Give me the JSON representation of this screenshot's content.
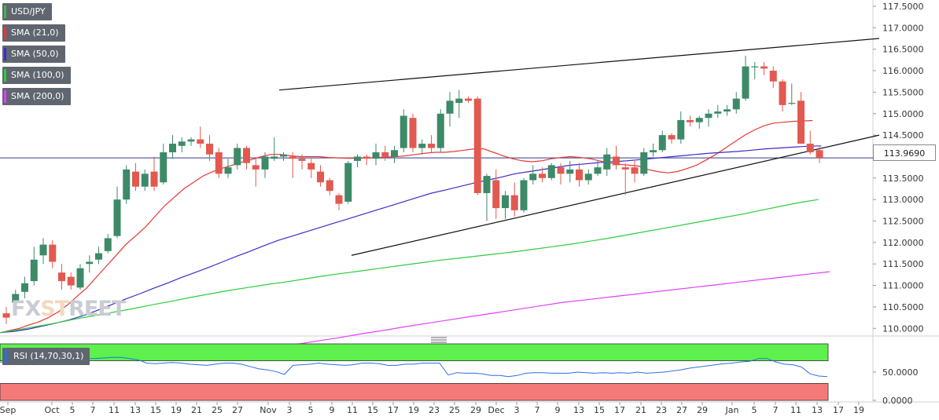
{
  "legends": [
    {
      "label": "USD/JPY",
      "color": "#4caf50"
    },
    {
      "label": "SMA (21,0)",
      "color": "#e53935"
    },
    {
      "label": "SMA (50,0)",
      "color": "#3f2bc7"
    },
    {
      "label": "SMA (100,0)",
      "color": "#2ecc40"
    },
    {
      "label": "SMA (200,0)",
      "color": "#e040fb"
    }
  ],
  "rsi": {
    "label": "RSI (14,70,30,1)",
    "color": "#2b6fe0",
    "overbought_color": "#5ef04c",
    "oversold_color": "#f47a7a",
    "values": [
      68,
      66,
      64,
      63,
      64,
      66,
      68,
      70,
      74,
      75,
      74,
      74,
      75,
      76,
      76,
      74,
      72,
      66,
      65,
      66,
      67,
      66,
      64,
      63,
      62,
      64,
      66,
      66,
      64,
      60,
      56,
      54,
      51,
      46,
      62,
      63,
      64,
      66,
      64,
      63,
      62,
      63,
      66,
      66,
      65,
      62,
      62,
      64,
      64,
      66,
      66,
      66,
      45,
      49,
      48,
      48,
      47,
      44,
      44,
      42,
      44,
      48,
      49,
      49,
      48,
      48,
      48,
      50,
      49,
      48,
      49,
      48,
      49,
      48,
      50,
      48,
      49,
      50,
      52,
      54,
      57,
      59,
      61,
      63,
      65,
      66,
      68,
      69,
      74,
      74,
      68,
      64,
      63,
      59,
      47,
      43,
      42
    ],
    "yticks": [
      "50.0000",
      "0.0000"
    ]
  },
  "brand": {
    "part1": "FX",
    "part2": "ST",
    "part3": "REET"
  },
  "current_price": "113.9690",
  "chart_data": {
    "type": "candlestick",
    "title": "USD/JPY",
    "ylim": [
      109.5,
      117.6
    ],
    "yticks": [
      "117.5000",
      "117.0000",
      "116.5000",
      "116.0000",
      "115.5000",
      "115.0000",
      "114.5000",
      "114.0000",
      "113.5000",
      "113.0000",
      "112.5000",
      "112.0000",
      "111.5000",
      "111.0000",
      "110.5000",
      "110.0000"
    ],
    "xticks": [
      "Sep",
      "Oct",
      "5",
      "7",
      "11",
      "13",
      "15",
      "19",
      "21",
      "25",
      "27",
      "Nov",
      "3",
      "5",
      "9",
      "11",
      "15",
      "17",
      "19",
      "23",
      "25",
      "29",
      "Dec",
      "3",
      "7",
      "9",
      "13",
      "15",
      "17",
      "21",
      "23",
      "27",
      "29",
      "Jan",
      "5",
      "7",
      "11",
      "13",
      "17",
      "19"
    ],
    "candles": [
      {
        "o": 110.35,
        "h": 110.5,
        "l": 110.1,
        "c": 110.25
      },
      {
        "o": 110.6,
        "h": 110.9,
        "l": 110.4,
        "c": 110.8
      },
      {
        "o": 110.85,
        "h": 111.2,
        "l": 110.7,
        "c": 111.05
      },
      {
        "o": 111.1,
        "h": 111.9,
        "l": 111.0,
        "c": 111.6
      },
      {
        "o": 111.7,
        "h": 112.1,
        "l": 111.5,
        "c": 111.95
      },
      {
        "o": 111.95,
        "h": 112.05,
        "l": 111.4,
        "c": 111.55
      },
      {
        "o": 111.3,
        "h": 111.5,
        "l": 110.9,
        "c": 111.1
      },
      {
        "o": 111.2,
        "h": 111.3,
        "l": 110.9,
        "c": 111.0
      },
      {
        "o": 110.95,
        "h": 111.5,
        "l": 110.9,
        "c": 111.4
      },
      {
        "o": 111.5,
        "h": 111.7,
        "l": 111.3,
        "c": 111.55
      },
      {
        "o": 111.6,
        "h": 111.9,
        "l": 111.5,
        "c": 111.75
      },
      {
        "o": 111.8,
        "h": 112.2,
        "l": 111.75,
        "c": 112.1
      },
      {
        "o": 112.15,
        "h": 113.3,
        "l": 112.1,
        "c": 113.0
      },
      {
        "o": 113.0,
        "h": 113.8,
        "l": 112.9,
        "c": 113.7
      },
      {
        "o": 113.65,
        "h": 113.85,
        "l": 113.2,
        "c": 113.3
      },
      {
        "o": 113.3,
        "h": 113.7,
        "l": 113.2,
        "c": 113.6
      },
      {
        "o": 113.65,
        "h": 114.0,
        "l": 113.2,
        "c": 113.3
      },
      {
        "o": 113.4,
        "h": 114.3,
        "l": 113.35,
        "c": 114.1
      },
      {
        "o": 114.1,
        "h": 114.5,
        "l": 113.95,
        "c": 114.3
      },
      {
        "o": 114.25,
        "h": 114.45,
        "l": 114.1,
        "c": 114.35
      },
      {
        "o": 114.35,
        "h": 114.45,
        "l": 114.25,
        "c": 114.4
      },
      {
        "o": 114.4,
        "h": 114.7,
        "l": 114.2,
        "c": 114.3
      },
      {
        "o": 114.3,
        "h": 114.5,
        "l": 113.9,
        "c": 114.05
      },
      {
        "o": 114.1,
        "h": 114.2,
        "l": 113.5,
        "c": 113.6
      },
      {
        "o": 113.6,
        "h": 113.95,
        "l": 113.5,
        "c": 113.75
      },
      {
        "o": 113.8,
        "h": 114.3,
        "l": 113.7,
        "c": 114.2
      },
      {
        "o": 114.2,
        "h": 114.25,
        "l": 113.7,
        "c": 113.85
      },
      {
        "o": 113.8,
        "h": 113.95,
        "l": 113.3,
        "c": 113.7
      },
      {
        "o": 113.7,
        "h": 114.1,
        "l": 113.5,
        "c": 114.0
      },
      {
        "o": 113.95,
        "h": 114.45,
        "l": 113.9,
        "c": 114.0
      },
      {
        "o": 114.0,
        "h": 114.1,
        "l": 113.9,
        "c": 114.05
      },
      {
        "o": 114.0,
        "h": 114.1,
        "l": 113.5,
        "c": 113.95
      },
      {
        "o": 113.95,
        "h": 114.05,
        "l": 113.7,
        "c": 113.9
      },
      {
        "o": 113.85,
        "h": 113.95,
        "l": 113.5,
        "c": 113.7
      },
      {
        "o": 113.65,
        "h": 113.8,
        "l": 113.3,
        "c": 113.4
      },
      {
        "o": 113.45,
        "h": 113.5,
        "l": 113.1,
        "c": 113.2
      },
      {
        "o": 113.1,
        "h": 113.15,
        "l": 112.75,
        "c": 112.9
      },
      {
        "o": 112.95,
        "h": 113.9,
        "l": 112.9,
        "c": 113.85
      },
      {
        "o": 113.9,
        "h": 114.05,
        "l": 113.75,
        "c": 114.0
      },
      {
        "o": 114.0,
        "h": 114.05,
        "l": 113.8,
        "c": 113.95
      },
      {
        "o": 113.95,
        "h": 114.3,
        "l": 113.8,
        "c": 114.1
      },
      {
        "o": 114.1,
        "h": 114.25,
        "l": 113.9,
        "c": 114.0
      },
      {
        "o": 114.0,
        "h": 114.25,
        "l": 113.85,
        "c": 114.15
      },
      {
        "o": 114.2,
        "h": 115.1,
        "l": 114.1,
        "c": 114.95
      },
      {
        "o": 114.9,
        "h": 115.0,
        "l": 114.1,
        "c": 114.2
      },
      {
        "o": 114.2,
        "h": 114.4,
        "l": 114.05,
        "c": 114.3
      },
      {
        "o": 114.3,
        "h": 114.5,
        "l": 114.1,
        "c": 114.2
      },
      {
        "o": 114.2,
        "h": 115.1,
        "l": 114.1,
        "c": 115.0
      },
      {
        "o": 115.0,
        "h": 115.5,
        "l": 114.7,
        "c": 115.3
      },
      {
        "o": 115.25,
        "h": 115.55,
        "l": 114.9,
        "c": 115.35
      },
      {
        "o": 115.35,
        "h": 115.4,
        "l": 115.25,
        "c": 115.3
      },
      {
        "o": 115.35,
        "h": 115.4,
        "l": 113.1,
        "c": 113.15
      },
      {
        "o": 113.15,
        "h": 113.6,
        "l": 112.5,
        "c": 113.55
      },
      {
        "o": 113.45,
        "h": 113.7,
        "l": 112.55,
        "c": 112.8
      },
      {
        "o": 112.8,
        "h": 113.2,
        "l": 112.55,
        "c": 113.1
      },
      {
        "o": 113.1,
        "h": 113.4,
        "l": 112.6,
        "c": 112.75
      },
      {
        "o": 112.75,
        "h": 113.5,
        "l": 112.7,
        "c": 113.45
      },
      {
        "o": 113.45,
        "h": 113.8,
        "l": 113.35,
        "c": 113.6
      },
      {
        "o": 113.6,
        "h": 113.75,
        "l": 113.4,
        "c": 113.5
      },
      {
        "o": 113.5,
        "h": 113.85,
        "l": 113.45,
        "c": 113.8
      },
      {
        "o": 113.75,
        "h": 113.85,
        "l": 113.35,
        "c": 113.6
      },
      {
        "o": 113.6,
        "h": 113.9,
        "l": 113.4,
        "c": 113.7
      },
      {
        "o": 113.7,
        "h": 113.85,
        "l": 113.3,
        "c": 113.45
      },
      {
        "o": 113.45,
        "h": 113.7,
        "l": 113.35,
        "c": 113.6
      },
      {
        "o": 113.6,
        "h": 113.9,
        "l": 113.55,
        "c": 113.75
      },
      {
        "o": 113.7,
        "h": 114.2,
        "l": 113.55,
        "c": 114.05
      },
      {
        "o": 114.0,
        "h": 114.25,
        "l": 113.7,
        "c": 113.8
      },
      {
        "o": 113.75,
        "h": 113.85,
        "l": 113.1,
        "c": 113.7
      },
      {
        "o": 113.75,
        "h": 113.9,
        "l": 113.4,
        "c": 113.6
      },
      {
        "o": 113.6,
        "h": 114.2,
        "l": 113.55,
        "c": 114.1
      },
      {
        "o": 114.1,
        "h": 114.3,
        "l": 114.0,
        "c": 114.15
      },
      {
        "o": 114.15,
        "h": 114.6,
        "l": 114.1,
        "c": 114.5
      },
      {
        "o": 114.5,
        "h": 114.55,
        "l": 114.3,
        "c": 114.4
      },
      {
        "o": 114.4,
        "h": 115.05,
        "l": 114.3,
        "c": 114.85
      },
      {
        "o": 114.85,
        "h": 114.95,
        "l": 114.7,
        "c": 114.8
      },
      {
        "o": 114.8,
        "h": 114.95,
        "l": 114.65,
        "c": 114.9
      },
      {
        "o": 114.9,
        "h": 115.1,
        "l": 114.7,
        "c": 115.0
      },
      {
        "o": 115.0,
        "h": 115.2,
        "l": 114.9,
        "c": 115.05
      },
      {
        "o": 115.05,
        "h": 115.2,
        "l": 114.95,
        "c": 115.1
      },
      {
        "o": 115.1,
        "h": 115.5,
        "l": 115.0,
        "c": 115.35
      },
      {
        "o": 115.35,
        "h": 116.35,
        "l": 115.3,
        "c": 116.1
      },
      {
        "o": 116.1,
        "h": 116.2,
        "l": 115.8,
        "c": 116.1
      },
      {
        "o": 116.1,
        "h": 116.2,
        "l": 115.9,
        "c": 116.05
      },
      {
        "o": 116.0,
        "h": 116.1,
        "l": 115.6,
        "c": 115.75
      },
      {
        "o": 115.75,
        "h": 115.8,
        "l": 115.05,
        "c": 115.2
      },
      {
        "o": 115.25,
        "h": 115.7,
        "l": 115.2,
        "c": 115.25
      },
      {
        "o": 115.3,
        "h": 115.5,
        "l": 114.3,
        "c": 114.3
      },
      {
        "o": 114.3,
        "h": 114.6,
        "l": 114.05,
        "c": 114.1
      },
      {
        "o": 114.15,
        "h": 114.25,
        "l": 113.85,
        "c": 113.969
      }
    ],
    "series": [
      {
        "name": "SMA (21,0)",
        "color": "#e53935",
        "values": [
          109.9,
          109.95,
          110.0,
          110.08,
          110.15,
          110.25,
          110.38,
          110.55,
          110.75,
          110.95,
          111.2,
          111.45,
          111.7,
          111.95,
          112.15,
          112.35,
          112.6,
          112.85,
          113.05,
          113.25,
          113.4,
          113.55,
          113.65,
          113.73,
          113.8,
          113.87,
          113.93,
          114.0,
          114.05,
          114.05,
          114.02,
          114.0,
          114.0,
          114.0,
          113.98,
          113.97,
          113.96,
          113.96,
          113.97,
          113.98,
          113.99,
          114.0,
          114.02,
          114.05,
          114.08,
          114.1,
          114.1,
          114.12,
          114.15,
          114.18,
          114.18,
          114.1,
          114.02,
          113.95,
          113.9,
          113.88,
          113.9,
          113.95,
          113.98,
          114.0,
          113.98,
          113.95,
          113.9,
          113.85,
          113.82,
          113.8,
          113.78,
          113.7,
          113.65,
          113.62,
          113.65,
          113.72,
          113.8,
          113.92,
          114.05,
          114.2,
          114.35,
          114.5,
          114.62,
          114.72,
          114.78,
          114.8,
          114.82,
          114.83,
          114.84
        ]
      },
      {
        "name": "SMA (50,0)",
        "color": "#3f2bc7",
        "values": [
          109.9,
          109.93,
          109.98,
          110.05,
          110.12,
          110.2,
          110.3,
          110.42,
          110.55,
          110.68,
          110.8,
          110.93,
          111.05,
          111.18,
          111.3,
          111.42,
          111.55,
          111.68,
          111.8,
          111.93,
          112.05,
          112.15,
          112.25,
          112.35,
          112.45,
          112.55,
          112.65,
          112.75,
          112.85,
          112.95,
          113.05,
          113.15,
          113.22,
          113.3,
          113.38,
          113.45,
          113.52,
          113.6,
          113.65,
          113.7,
          113.75,
          113.8,
          113.83,
          113.86,
          113.88,
          113.9,
          113.93,
          113.96,
          113.99,
          114.02,
          114.05,
          114.08,
          114.1,
          114.12,
          114.15,
          114.18,
          114.2,
          114.22,
          114.24,
          114.25
        ]
      },
      {
        "name": "SMA (100,0)",
        "color": "#2ecc40",
        "values": [
          109.9,
          109.97,
          110.05,
          110.13,
          110.22,
          110.3,
          110.38,
          110.46,
          110.55,
          110.63,
          110.72,
          110.8,
          110.88,
          110.95,
          111.02,
          111.08,
          111.15,
          111.22,
          111.28,
          111.34,
          111.4,
          111.46,
          111.52,
          111.58,
          111.63,
          111.68,
          111.73,
          111.78,
          111.84,
          111.9,
          111.96,
          112.03,
          112.1,
          112.18,
          112.26,
          112.34,
          112.42,
          112.5,
          112.58,
          112.66,
          112.75,
          112.84,
          112.93,
          113.0
        ]
      },
      {
        "name": "SMA (200,0)",
        "color": "#e040fb",
        "values": [
          109.55,
          109.62,
          109.7,
          109.78,
          109.87,
          109.95,
          110.04,
          110.12,
          110.2,
          110.28,
          110.36,
          110.44,
          110.52,
          110.6,
          110.66,
          110.72,
          110.78,
          110.84,
          110.9,
          110.96,
          111.02,
          111.08,
          111.14,
          111.2,
          111.26,
          111.32
        ]
      }
    ]
  }
}
